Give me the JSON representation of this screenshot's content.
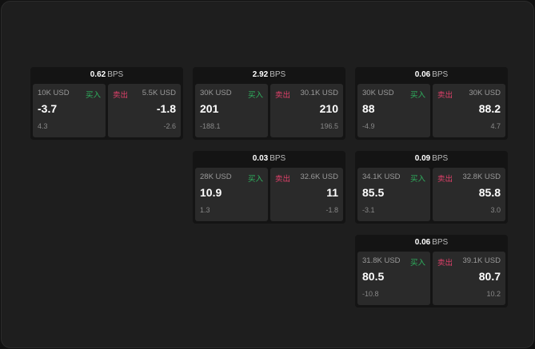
{
  "unit_label": "BPS",
  "buy_label": "买入",
  "sell_label": "卖出",
  "colors": {
    "buy": "#2fb35f",
    "sell": "#e0406a",
    "background": "#1e1e1e"
  },
  "cards": [
    {
      "spread": "0.62",
      "buy": {
        "size": "10K USD",
        "price": "-3.7",
        "change": "4.3"
      },
      "sell": {
        "size": "5.5K USD",
        "price": "-1.8",
        "change": "-2.6"
      }
    },
    {
      "spread": "2.92",
      "buy": {
        "size": "30K USD",
        "price": "201",
        "change": "-188.1"
      },
      "sell": {
        "size": "30.1K USD",
        "price": "210",
        "change": "196.5"
      }
    },
    {
      "spread": "0.06",
      "buy": {
        "size": "30K USD",
        "price": "88",
        "change": "-4.9"
      },
      "sell": {
        "size": "30K USD",
        "price": "88.2",
        "change": "4.7"
      }
    },
    {
      "spread": "0.03",
      "buy": {
        "size": "28K USD",
        "price": "10.9",
        "change": "1.3"
      },
      "sell": {
        "size": "32.6K USD",
        "price": "11",
        "change": "-1.8"
      }
    },
    {
      "spread": "0.09",
      "buy": {
        "size": "34.1K USD",
        "price": "85.5",
        "change": "-3.1"
      },
      "sell": {
        "size": "32.8K USD",
        "price": "85.8",
        "change": "3.0"
      }
    },
    {
      "spread": "0.06",
      "buy": {
        "size": "31.8K USD",
        "price": "80.5",
        "change": "-10.8"
      },
      "sell": {
        "size": "39.1K USD",
        "price": "80.7",
        "change": "10.2"
      }
    }
  ]
}
